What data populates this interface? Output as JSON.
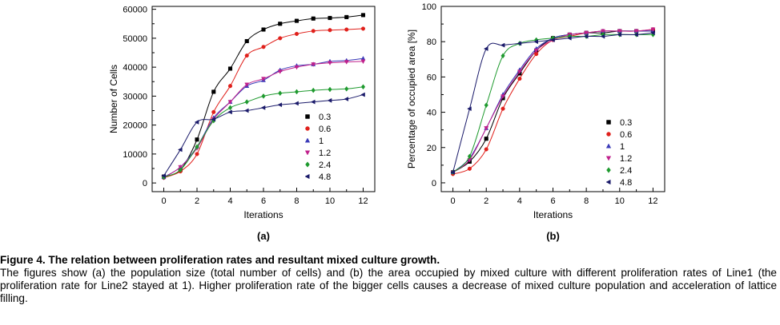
{
  "chart_data": [
    {
      "type": "scatter",
      "panel_label": "(a)",
      "xlabel": "Iterations",
      "ylabel": "Number of Cells",
      "xlim": [
        -0.7,
        12.7
      ],
      "ylim": [
        -3000,
        61000
      ],
      "x_ticks": [
        0,
        2,
        4,
        6,
        8,
        10,
        12
      ],
      "y_ticks": [
        0,
        10000,
        20000,
        30000,
        40000,
        50000,
        60000
      ],
      "grid": false,
      "legend_position": "top-right",
      "series": [
        {
          "name": "0.3",
          "color": "#000000",
          "marker": "square",
          "x": [
            0,
            1,
            2,
            3,
            4,
            5,
            6,
            7,
            8,
            9,
            10,
            11,
            12
          ],
          "y": [
            2200,
            4500,
            15000,
            31500,
            39500,
            49000,
            53000,
            55000,
            56000,
            56800,
            57000,
            57300,
            58000
          ]
        },
        {
          "name": "0.6",
          "color": "#e0201b",
          "marker": "circle",
          "x": [
            0,
            1,
            2,
            3,
            4,
            5,
            6,
            7,
            8,
            9,
            10,
            11,
            12
          ],
          "y": [
            1800,
            4000,
            10000,
            24500,
            33500,
            44000,
            47000,
            50000,
            51500,
            52500,
            52800,
            53000,
            53300
          ]
        },
        {
          "name": "1",
          "color": "#3a3ab8",
          "marker": "triangle-up",
          "x": [
            0,
            1,
            2,
            3,
            4,
            5,
            6,
            7,
            8,
            9,
            10,
            11,
            12
          ],
          "y": [
            2000,
            5500,
            12500,
            22500,
            28000,
            33500,
            35500,
            39000,
            40500,
            41000,
            42000,
            42300,
            43000
          ]
        },
        {
          "name": "1.2",
          "color": "#c0208c",
          "marker": "triangle-down",
          "x": [
            0,
            1,
            2,
            3,
            4,
            5,
            6,
            7,
            8,
            9,
            10,
            11,
            12
          ],
          "y": [
            1800,
            5500,
            12000,
            22000,
            28000,
            34000,
            36000,
            38500,
            40000,
            41000,
            41500,
            41800,
            42000
          ]
        },
        {
          "name": "2.4",
          "color": "#1e9a2e",
          "marker": "diamond",
          "x": [
            0,
            1,
            2,
            3,
            4,
            5,
            6,
            7,
            8,
            9,
            10,
            11,
            12
          ],
          "y": [
            2000,
            4500,
            12500,
            21500,
            26000,
            28000,
            30000,
            31000,
            31500,
            32000,
            32300,
            32500,
            33200
          ]
        },
        {
          "name": "4.8",
          "color": "#1a1a6a",
          "marker": "triangle-left",
          "x": [
            0,
            1,
            2,
            3,
            4,
            5,
            6,
            7,
            8,
            9,
            10,
            11,
            12
          ],
          "y": [
            2500,
            11500,
            21000,
            22000,
            24500,
            25000,
            26000,
            27000,
            27500,
            28000,
            28500,
            29000,
            30500
          ]
        }
      ]
    },
    {
      "type": "scatter",
      "panel_label": "(b)",
      "xlabel": "Iterations",
      "ylabel": "Percentage of occupied area [%]",
      "xlim": [
        -0.7,
        12.7
      ],
      "ylim": [
        -5,
        100
      ],
      "x_ticks": [
        0,
        2,
        4,
        6,
        8,
        10,
        12
      ],
      "y_ticks": [
        0,
        20,
        40,
        60,
        80,
        100
      ],
      "grid": false,
      "legend_position": "bottom-right",
      "series": [
        {
          "name": "0.3",
          "color": "#000000",
          "marker": "square",
          "x": [
            0,
            1,
            2,
            3,
            4,
            5,
            6,
            7,
            8,
            9,
            10,
            11,
            12
          ],
          "y": [
            6,
            12,
            25,
            48,
            62,
            75,
            82,
            84,
            85,
            85,
            86,
            86,
            86
          ]
        },
        {
          "name": "0.6",
          "color": "#e0201b",
          "marker": "circle",
          "x": [
            0,
            1,
            2,
            3,
            4,
            5,
            6,
            7,
            8,
            9,
            10,
            11,
            12
          ],
          "y": [
            5,
            8,
            19,
            42,
            59,
            73,
            81,
            83,
            85,
            86,
            86,
            86,
            87
          ]
        },
        {
          "name": "1",
          "color": "#3a3ab8",
          "marker": "triangle-up",
          "x": [
            0,
            1,
            2,
            3,
            4,
            5,
            6,
            7,
            8,
            9,
            10,
            11,
            12
          ],
          "y": [
            6,
            14,
            31,
            50,
            64,
            76,
            82,
            84,
            85,
            86,
            86,
            86,
            86
          ]
        },
        {
          "name": "1.2",
          "color": "#c0208c",
          "marker": "triangle-down",
          "x": [
            0,
            1,
            2,
            3,
            4,
            5,
            6,
            7,
            8,
            9,
            10,
            11,
            12
          ],
          "y": [
            6,
            13,
            31,
            49,
            63,
            75,
            81,
            84,
            85,
            86,
            86,
            86,
            87
          ]
        },
        {
          "name": "2.4",
          "color": "#1e9a2e",
          "marker": "diamond",
          "x": [
            0,
            1,
            2,
            3,
            4,
            5,
            6,
            7,
            8,
            9,
            10,
            11,
            12
          ],
          "y": [
            6,
            15,
            44,
            72,
            79,
            81,
            82,
            83,
            83,
            84,
            84,
            84,
            84
          ]
        },
        {
          "name": "4.8",
          "color": "#1a1a6a",
          "marker": "triangle-left",
          "x": [
            0,
            1,
            2,
            3,
            4,
            5,
            6,
            7,
            8,
            9,
            10,
            11,
            12
          ],
          "y": [
            6,
            42,
            76,
            78,
            79,
            80,
            81,
            82,
            83,
            83,
            84,
            84,
            85
          ]
        }
      ]
    }
  ],
  "caption": {
    "title": "Figure 4. The relation between proliferation rates and resultant mixed culture growth.",
    "body": "The figures show (a) the population size (total number of cells) and (b) the area occupied by mixed culture with different proliferation rates of Line1 (the proliferation rate for Line2 stayed at 1). Higher proliferation rate of the bigger cells causes a decrease of mixed culture population and acceleration of lattice filling."
  }
}
